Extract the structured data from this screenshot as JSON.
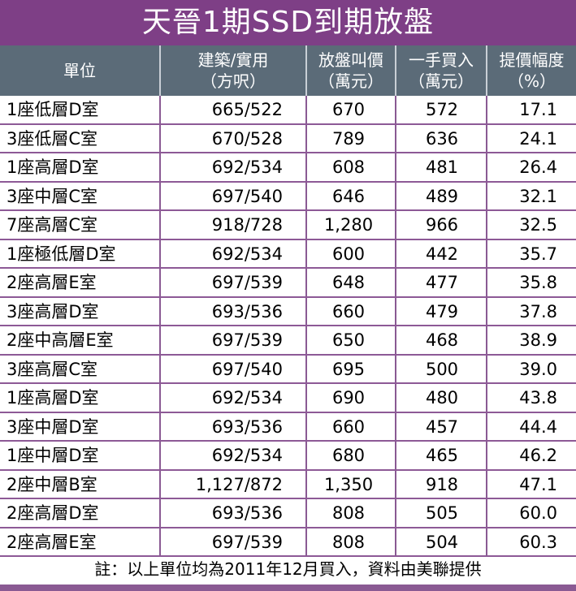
{
  "title": "天晉1期SSD到期放盤",
  "headers": {
    "unit": "單位",
    "area_line1": "建築/實用",
    "area_line2": "（方呎）",
    "ask_line1": "放盤叫價",
    "ask_line2": "（萬元）",
    "buy_line1": "一手買入",
    "buy_line2": "（萬元）",
    "pct_line1": "提價幅度",
    "pct_line2": "（%）"
  },
  "rows": [
    {
      "unit": "1座低層D室",
      "area": "665/522",
      "ask": "670",
      "buy": "572",
      "pct": "17.1"
    },
    {
      "unit": "3座低層C室",
      "area": "670/528",
      "ask": "789",
      "buy": "636",
      "pct": "24.1"
    },
    {
      "unit": "1座高層D室",
      "area": "692/534",
      "ask": "608",
      "buy": "481",
      "pct": "26.4"
    },
    {
      "unit": "3座中層C室",
      "area": "697/540",
      "ask": "646",
      "buy": "489",
      "pct": "32.1"
    },
    {
      "unit": "7座高層C室",
      "area": "918/728",
      "ask": "1,280",
      "buy": "966",
      "pct": "32.5"
    },
    {
      "unit": "1座極低層D室",
      "area": "692/534",
      "ask": "600",
      "buy": "442",
      "pct": "35.7"
    },
    {
      "unit": "2座高層E室",
      "area": "697/539",
      "ask": "648",
      "buy": "477",
      "pct": "35.8"
    },
    {
      "unit": "3座高層D室",
      "area": "693/536",
      "ask": "660",
      "buy": "479",
      "pct": "37.8"
    },
    {
      "unit": "2座中高層E室",
      "area": "697/539",
      "ask": "650",
      "buy": "468",
      "pct": "38.9"
    },
    {
      "unit": "3座高層C室",
      "area": "697/540",
      "ask": "695",
      "buy": "500",
      "pct": "39.0"
    },
    {
      "unit": "1座高層D室",
      "area": "692/534",
      "ask": "690",
      "buy": "480",
      "pct": "43.8"
    },
    {
      "unit": "3座中層D室",
      "area": "693/536",
      "ask": "660",
      "buy": "457",
      "pct": "44.4"
    },
    {
      "unit": "1座中層D室",
      "area": "692/534",
      "ask": "680",
      "buy": "465",
      "pct": "46.2"
    },
    {
      "unit": "2座中層B室",
      "area": "1,127/872",
      "ask": "1,350",
      "buy": "918",
      "pct": "47.1"
    },
    {
      "unit": "2座高層D室",
      "area": "693/536",
      "ask": "808",
      "buy": "505",
      "pct": "60.0"
    },
    {
      "unit": "2座高層E室",
      "area": "697/539",
      "ask": "808",
      "buy": "504",
      "pct": "60.3"
    }
  ],
  "footer": "註：以上單位均為2011年12月買入，資料由美聯提供",
  "colors": {
    "title_bg": "#7e3f86",
    "header_bg": "#5b6b78",
    "grid_line": "#8d5996"
  }
}
